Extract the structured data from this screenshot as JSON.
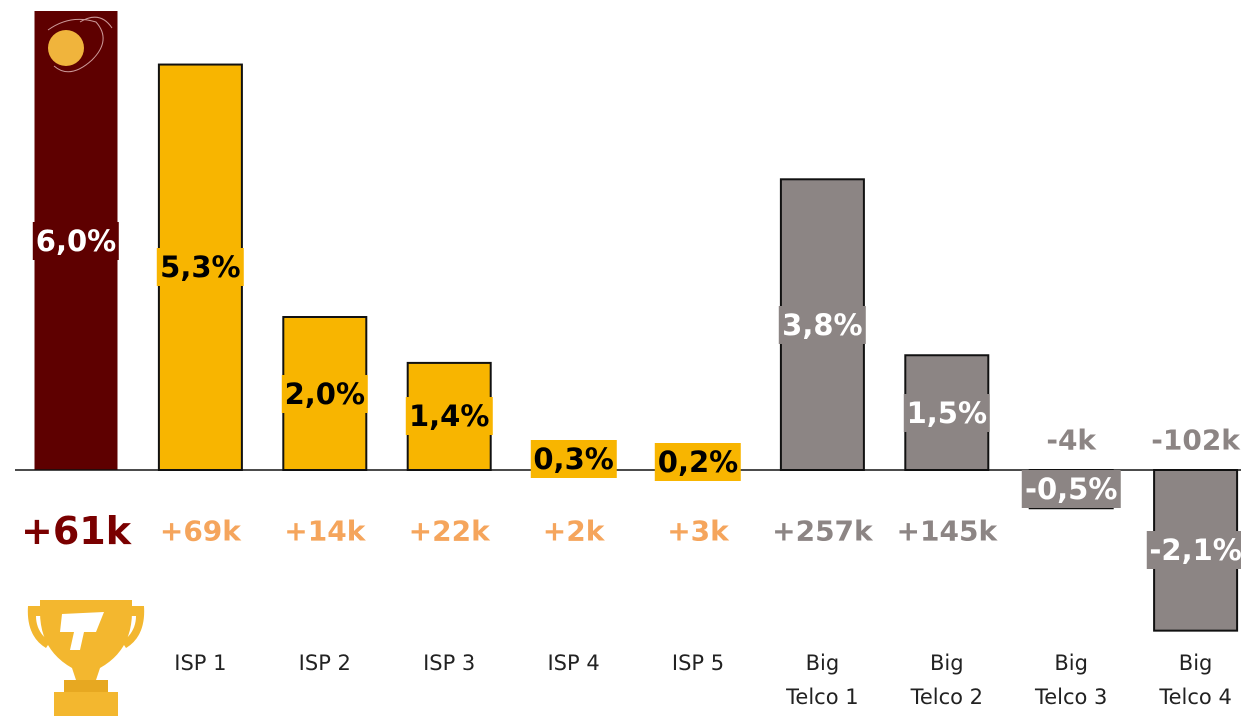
{
  "chart_data": {
    "type": "bar",
    "categories": [
      null,
      "ISP 1",
      "ISP 2",
      "ISP 3",
      "ISP 4",
      "ISP 5",
      "Big Telco 1",
      "Big Telco 2",
      "Big Telco 3",
      "Big Telco 4"
    ],
    "values": [
      6.0,
      5.3,
      2.0,
      1.4,
      0.3,
      0.2,
      3.8,
      1.5,
      -0.5,
      -2.1
    ],
    "value_labels": [
      "6,0%",
      "5,3%",
      "2,0%",
      "1,4%",
      "0,3%",
      "0,2%",
      "3,8%",
      "1,5%",
      "-0,5%",
      "-2,1%"
    ],
    "colors": [
      "#5e0000",
      "#f8b500",
      "#f8b500",
      "#f8b500",
      "#f8b500",
      "#f8b500",
      "#8c8584",
      "#8c8584",
      "#8c8584",
      "#8c8584"
    ],
    "change_labels": [
      "+61k",
      "+69k",
      "+14k",
      "+22k",
      "+2k",
      "+3k",
      "+257k",
      "+145k",
      "-4k",
      "-102k"
    ],
    "change_colors": [
      "#7a0000",
      "#f5a55c",
      "#f5a55c",
      "#f5a55c",
      "#f5a55c",
      "#f5a55c",
      "#8c8584",
      "#8c8584",
      "#8c8584",
      "#8c8584"
    ]
  }
}
